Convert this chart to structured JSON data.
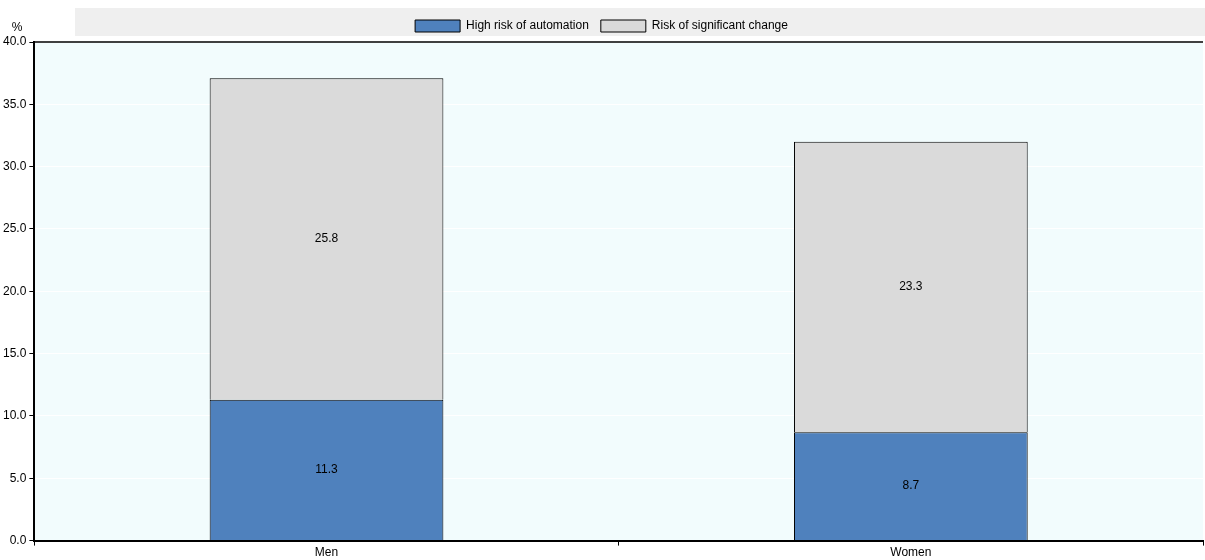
{
  "chart_data": {
    "type": "bar",
    "stacked": true,
    "ylabel": "%",
    "categories": [
      "Men",
      "Women"
    ],
    "series": [
      {
        "name": "High risk of automation",
        "color": "#4f81bd",
        "values": [
          11.3,
          8.7
        ]
      },
      {
        "name": "Risk of significant change",
        "color": "#dadada",
        "values": [
          25.8,
          23.3
        ]
      }
    ],
    "ylim": [
      0,
      40
    ],
    "yticks": [
      {
        "value": 0,
        "label": "0.0"
      },
      {
        "value": 5,
        "label": "5.0"
      },
      {
        "value": 10,
        "label": "10.0"
      },
      {
        "value": 15,
        "label": "15.0"
      },
      {
        "value": 20,
        "label": "20.0"
      },
      {
        "value": 25,
        "label": "25.0"
      },
      {
        "value": 30,
        "label": "30.0"
      },
      {
        "value": 35,
        "label": "35.0"
      },
      {
        "value": 40,
        "label": "40.0"
      }
    ],
    "grid": "y",
    "legend": "top",
    "data_labels": true
  }
}
